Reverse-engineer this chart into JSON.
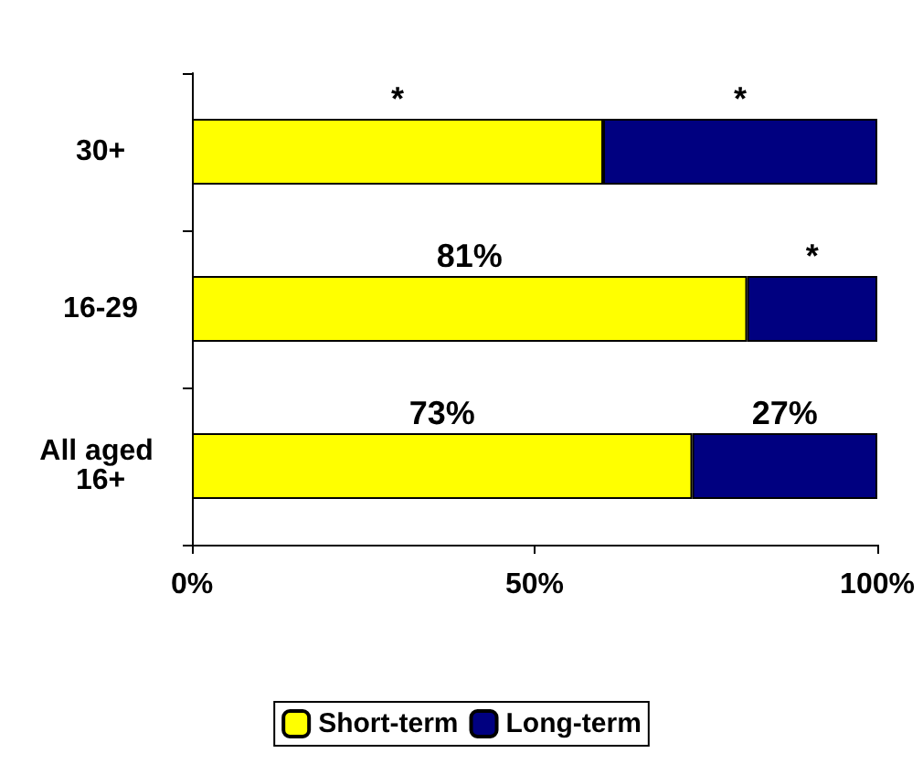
{
  "chart_data": {
    "type": "bar",
    "orientation": "horizontal",
    "stacked": true,
    "categories": [
      "30+",
      "16-29",
      "All aged 16+"
    ],
    "series": [
      {
        "name": "Short-term",
        "color": "#ffff00",
        "values": [
          60,
          81,
          73
        ],
        "value_labels": [
          "*",
          "81%",
          "73%"
        ]
      },
      {
        "name": "Long-term",
        "color": "#000080",
        "values": [
          40,
          19,
          27
        ],
        "value_labels": [
          "*",
          "*",
          "27%"
        ]
      }
    ],
    "xlim": [
      0,
      100
    ],
    "xticks": [
      {
        "value": 0,
        "label": "0%"
      },
      {
        "value": 50,
        "label": "50%"
      },
      {
        "value": 100,
        "label": "100%"
      }
    ],
    "grid": false,
    "legend": "bottom"
  }
}
